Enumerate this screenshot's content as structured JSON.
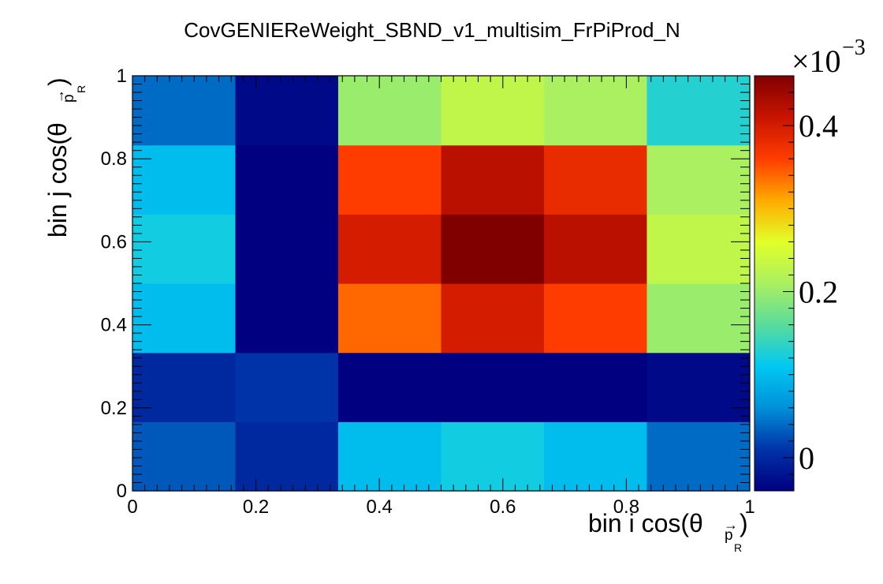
{
  "chart_data": {
    "type": "heatmap",
    "title": "CovGENIEReWeight_SBND_v1_multisim_FrPiProd_N",
    "xlabel": {
      "main": "bin i cos(θ",
      "arrow": "→",
      "sub": "p",
      "subsub": "R",
      "close": ")"
    },
    "ylabel": {
      "main": "bin j cos(θ",
      "arrow": "→",
      "sub": "p",
      "subsub": "R",
      "close": ")"
    },
    "xlim": [
      0,
      1
    ],
    "ylim": [
      0,
      1
    ],
    "x_edges": [
      0,
      0.1667,
      0.3333,
      0.5,
      0.6667,
      0.8333,
      1
    ],
    "y_edges": [
      0,
      0.1667,
      0.3333,
      0.5,
      0.6667,
      0.8333,
      1
    ],
    "x_tick_labels": [
      "0",
      "0.2",
      "0.4",
      "0.6",
      "0.8",
      "1"
    ],
    "y_tick_labels": [
      "0",
      "0.2",
      "0.4",
      "0.6",
      "0.8",
      "1"
    ],
    "values_unit": "×10^-3",
    "values": [
      [
        0.03,
        0.0,
        0.1,
        0.12,
        0.1,
        0.04
      ],
      [
        0.0,
        0.01,
        -0.04,
        -0.04,
        -0.04,
        -0.03
      ],
      [
        0.1,
        -0.04,
        0.34,
        0.4,
        0.36,
        0.2
      ],
      [
        0.12,
        -0.04,
        0.4,
        0.46,
        0.42,
        0.23
      ],
      [
        0.1,
        -0.04,
        0.36,
        0.42,
        0.38,
        0.21
      ],
      [
        0.04,
        -0.03,
        0.2,
        0.23,
        0.21,
        0.13
      ]
    ],
    "z_range": [
      -0.04,
      0.46
    ],
    "colorbar": {
      "exponent_label": "×10",
      "exponent": "−3",
      "tick_labels": [
        "0",
        "0.2",
        "0.4"
      ],
      "tick_values": [
        0,
        0.2,
        0.4
      ]
    },
    "palette": [
      "#000080",
      "#0033a8",
      "#0090d8",
      "#00c8f2",
      "#5adc9c",
      "#aaf060",
      "#e2ff28",
      "#ffaa00",
      "#ff3c00",
      "#c81400",
      "#800000"
    ],
    "grid": false,
    "legend": "colorbar-right"
  }
}
